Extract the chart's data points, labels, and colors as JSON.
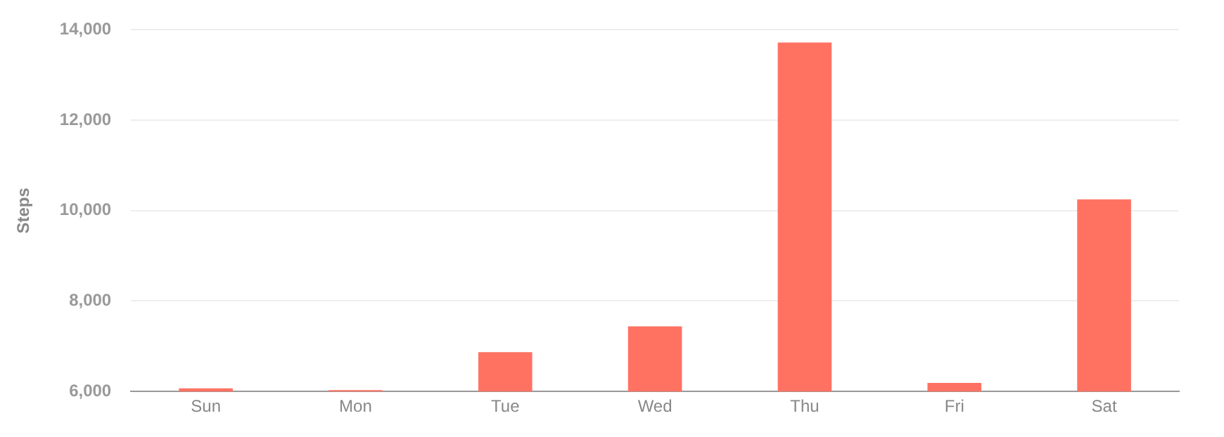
{
  "chart_data": {
    "type": "bar",
    "ylabel": "Steps",
    "categories": [
      "Sun",
      "Mon",
      "Tue",
      "Wed",
      "Thu",
      "Fri",
      "Sat"
    ],
    "values": [
      6070,
      6030,
      6870,
      7440,
      13720,
      6190,
      10250
    ],
    "color": "#ff7262",
    "ylim": [
      6000,
      14000
    ],
    "yticks": [
      {
        "value": 6000,
        "label": "6,000"
      },
      {
        "value": 8000,
        "label": "8,000"
      },
      {
        "value": 10000,
        "label": "10,000"
      },
      {
        "value": 12000,
        "label": "12,000"
      },
      {
        "value": 14000,
        "label": "14,000"
      }
    ],
    "grid": "y",
    "legend": false
  }
}
